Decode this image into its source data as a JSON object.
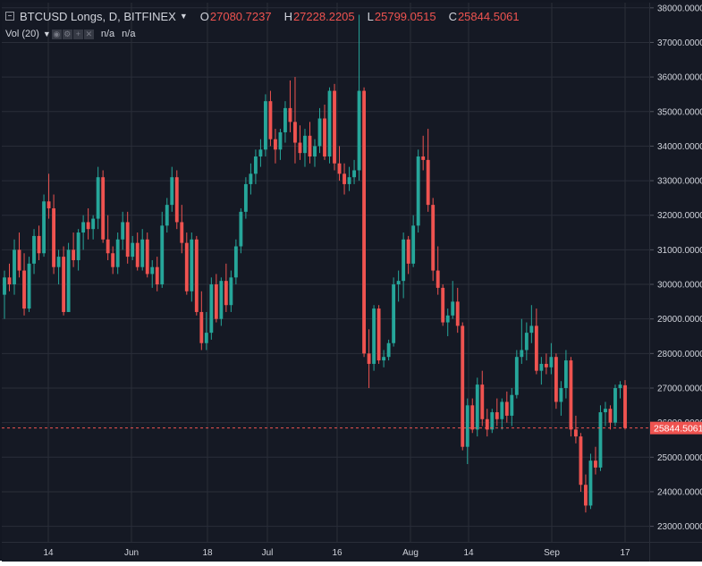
{
  "legend": {
    "title": "BTCUSD Longs, D, BITFINEX",
    "open_label": "O",
    "open": "27080.7237",
    "high_label": "H",
    "high": "27228.2205",
    "low_label": "L",
    "low": "25799.0515",
    "close_label": "C",
    "close": "25844.5061"
  },
  "volume": {
    "label": "Vol (20)",
    "value1": "n/a",
    "value2": "n/a"
  },
  "price_tag": "25844.5061",
  "colors": {
    "up": "#26a69a",
    "down": "#ef5350",
    "background": "#151924",
    "grid": "#2a2e39",
    "axis_text": "#d1d4dc",
    "price_line": "#ef5350"
  },
  "chart_data": {
    "type": "candlestick",
    "y_ticks": [
      "38000.0000",
      "37000.0000",
      "36000.0000",
      "35000.0000",
      "34000.0000",
      "33000.0000",
      "32000.0000",
      "31000.0000",
      "30000.0000",
      "29000.0000",
      "28000.0000",
      "27000.0000",
      "26000.0000",
      "25000.0000",
      "24000.0000",
      "23000.0000"
    ],
    "ylim": [
      22550,
      38150
    ],
    "x_ticks": [
      "14",
      "Jun",
      "18",
      "Jul",
      "16",
      "Aug",
      "14",
      "Sep",
      "17"
    ],
    "last_price": 25844.5061,
    "candles": [
      {
        "o": 29700,
        "h": 30400,
        "l": 29000,
        "c": 30200
      },
      {
        "o": 30200,
        "h": 30600,
        "l": 29800,
        "c": 30000
      },
      {
        "o": 30000,
        "h": 31300,
        "l": 29700,
        "c": 31000
      },
      {
        "o": 31000,
        "h": 31500,
        "l": 30200,
        "c": 30400
      },
      {
        "o": 30400,
        "h": 30900,
        "l": 29100,
        "c": 29300
      },
      {
        "o": 29300,
        "h": 30800,
        "l": 29200,
        "c": 30600
      },
      {
        "o": 30600,
        "h": 31600,
        "l": 30300,
        "c": 31400
      },
      {
        "o": 31400,
        "h": 31700,
        "l": 30700,
        "c": 30900
      },
      {
        "o": 30900,
        "h": 32600,
        "l": 30800,
        "c": 32400
      },
      {
        "o": 32400,
        "h": 33200,
        "l": 31900,
        "c": 32200
      },
      {
        "o": 32200,
        "h": 32600,
        "l": 30300,
        "c": 30500
      },
      {
        "o": 30500,
        "h": 31000,
        "l": 30000,
        "c": 30800
      },
      {
        "o": 30800,
        "h": 31100,
        "l": 29100,
        "c": 29200
      },
      {
        "o": 29200,
        "h": 31200,
        "l": 29200,
        "c": 31000
      },
      {
        "o": 31000,
        "h": 31500,
        "l": 30500,
        "c": 30700
      },
      {
        "o": 30700,
        "h": 31600,
        "l": 30400,
        "c": 31500
      },
      {
        "o": 31500,
        "h": 32000,
        "l": 31000,
        "c": 31800
      },
      {
        "o": 31800,
        "h": 32200,
        "l": 31300,
        "c": 31600
      },
      {
        "o": 31600,
        "h": 32000,
        "l": 31300,
        "c": 31900
      },
      {
        "o": 31900,
        "h": 33400,
        "l": 31600,
        "c": 33100
      },
      {
        "o": 33100,
        "h": 33300,
        "l": 31200,
        "c": 31300
      },
      {
        "o": 31300,
        "h": 32000,
        "l": 30700,
        "c": 30900
      },
      {
        "o": 30900,
        "h": 31100,
        "l": 30300,
        "c": 30500
      },
      {
        "o": 30500,
        "h": 31500,
        "l": 30300,
        "c": 31300
      },
      {
        "o": 31300,
        "h": 32100,
        "l": 31000,
        "c": 31800
      },
      {
        "o": 31800,
        "h": 32100,
        "l": 30600,
        "c": 30800
      },
      {
        "o": 30800,
        "h": 31400,
        "l": 30700,
        "c": 31200
      },
      {
        "o": 31200,
        "h": 31500,
        "l": 30400,
        "c": 30500
      },
      {
        "o": 30500,
        "h": 31600,
        "l": 30400,
        "c": 31300
      },
      {
        "o": 31300,
        "h": 31500,
        "l": 30200,
        "c": 30300
      },
      {
        "o": 30300,
        "h": 30700,
        "l": 29900,
        "c": 30500
      },
      {
        "o": 30500,
        "h": 30800,
        "l": 29800,
        "c": 30000
      },
      {
        "o": 30000,
        "h": 32100,
        "l": 29900,
        "c": 31700
      },
      {
        "o": 31700,
        "h": 32500,
        "l": 31500,
        "c": 32300
      },
      {
        "o": 32300,
        "h": 33400,
        "l": 32100,
        "c": 33100
      },
      {
        "o": 33100,
        "h": 33300,
        "l": 31600,
        "c": 31800
      },
      {
        "o": 31800,
        "h": 32300,
        "l": 30900,
        "c": 31200
      },
      {
        "o": 31200,
        "h": 31500,
        "l": 29700,
        "c": 29800
      },
      {
        "o": 29800,
        "h": 31500,
        "l": 29500,
        "c": 31300
      },
      {
        "o": 31300,
        "h": 31400,
        "l": 29100,
        "c": 29200
      },
      {
        "o": 29200,
        "h": 29800,
        "l": 28100,
        "c": 28300
      },
      {
        "o": 28300,
        "h": 29200,
        "l": 28100,
        "c": 28600
      },
      {
        "o": 28600,
        "h": 30200,
        "l": 28400,
        "c": 30000
      },
      {
        "o": 30000,
        "h": 30300,
        "l": 28900,
        "c": 29000
      },
      {
        "o": 29000,
        "h": 30200,
        "l": 28800,
        "c": 30100
      },
      {
        "o": 30100,
        "h": 30600,
        "l": 29200,
        "c": 29400
      },
      {
        "o": 29400,
        "h": 30400,
        "l": 29200,
        "c": 30200
      },
      {
        "o": 30200,
        "h": 31300,
        "l": 30000,
        "c": 31100
      },
      {
        "o": 31100,
        "h": 32200,
        "l": 30900,
        "c": 32100
      },
      {
        "o": 32100,
        "h": 33100,
        "l": 31900,
        "c": 32900
      },
      {
        "o": 32900,
        "h": 33500,
        "l": 32600,
        "c": 33200
      },
      {
        "o": 33200,
        "h": 33900,
        "l": 32900,
        "c": 33700
      },
      {
        "o": 33700,
        "h": 34200,
        "l": 33400,
        "c": 33900
      },
      {
        "o": 33900,
        "h": 35500,
        "l": 33700,
        "c": 35300
      },
      {
        "o": 35300,
        "h": 35600,
        "l": 34000,
        "c": 34200
      },
      {
        "o": 34200,
        "h": 34500,
        "l": 33500,
        "c": 33900
      },
      {
        "o": 33900,
        "h": 34500,
        "l": 33600,
        "c": 34400
      },
      {
        "o": 34400,
        "h": 35300,
        "l": 34100,
        "c": 35100
      },
      {
        "o": 35100,
        "h": 35900,
        "l": 34400,
        "c": 34700
      },
      {
        "o": 34700,
        "h": 36000,
        "l": 33500,
        "c": 34100
      },
      {
        "o": 34100,
        "h": 34600,
        "l": 33600,
        "c": 33800
      },
      {
        "o": 33800,
        "h": 34500,
        "l": 33400,
        "c": 34300
      },
      {
        "o": 34300,
        "h": 34700,
        "l": 33500,
        "c": 33700
      },
      {
        "o": 33700,
        "h": 34200,
        "l": 33400,
        "c": 34000
      },
      {
        "o": 34000,
        "h": 35100,
        "l": 33800,
        "c": 34800
      },
      {
        "o": 34800,
        "h": 35200,
        "l": 33600,
        "c": 33700
      },
      {
        "o": 33700,
        "h": 35700,
        "l": 33500,
        "c": 35600
      },
      {
        "o": 35600,
        "h": 35800,
        "l": 33300,
        "c": 33500
      },
      {
        "o": 33500,
        "h": 34000,
        "l": 33000,
        "c": 33200
      },
      {
        "o": 33200,
        "h": 33500,
        "l": 32600,
        "c": 32900
      },
      {
        "o": 32900,
        "h": 33400,
        "l": 32700,
        "c": 33100
      },
      {
        "o": 33100,
        "h": 33600,
        "l": 32900,
        "c": 33300
      },
      {
        "o": 33300,
        "h": 37800,
        "l": 33000,
        "c": 35600
      },
      {
        "o": 35600,
        "h": 35700,
        "l": 27900,
        "c": 28000
      },
      {
        "o": 28000,
        "h": 28700,
        "l": 27000,
        "c": 27700
      },
      {
        "o": 27700,
        "h": 29400,
        "l": 27500,
        "c": 29300
      },
      {
        "o": 29300,
        "h": 29400,
        "l": 27700,
        "c": 27800
      },
      {
        "o": 27800,
        "h": 28100,
        "l": 27600,
        "c": 27900
      },
      {
        "o": 27900,
        "h": 28400,
        "l": 27800,
        "c": 28300
      },
      {
        "o": 28300,
        "h": 30200,
        "l": 28200,
        "c": 30000
      },
      {
        "o": 30000,
        "h": 30400,
        "l": 29500,
        "c": 30100
      },
      {
        "o": 30100,
        "h": 31500,
        "l": 29600,
        "c": 31300
      },
      {
        "o": 31300,
        "h": 31400,
        "l": 30300,
        "c": 30600
      },
      {
        "o": 30600,
        "h": 32000,
        "l": 30500,
        "c": 31700
      },
      {
        "o": 31700,
        "h": 33900,
        "l": 31500,
        "c": 33700
      },
      {
        "o": 33700,
        "h": 34300,
        "l": 33300,
        "c": 33600
      },
      {
        "o": 33600,
        "h": 34500,
        "l": 32100,
        "c": 32300
      },
      {
        "o": 32300,
        "h": 32500,
        "l": 30100,
        "c": 30400
      },
      {
        "o": 30400,
        "h": 31100,
        "l": 29700,
        "c": 29900
      },
      {
        "o": 29900,
        "h": 30000,
        "l": 28800,
        "c": 28900
      },
      {
        "o": 28900,
        "h": 29300,
        "l": 28500,
        "c": 29100
      },
      {
        "o": 29100,
        "h": 30100,
        "l": 29000,
        "c": 29500
      },
      {
        "o": 29500,
        "h": 29900,
        "l": 28600,
        "c": 28800
      },
      {
        "o": 28800,
        "h": 28900,
        "l": 25200,
        "c": 25300
      },
      {
        "o": 25300,
        "h": 26700,
        "l": 24800,
        "c": 26500
      },
      {
        "o": 26500,
        "h": 26700,
        "l": 25700,
        "c": 25800
      },
      {
        "o": 25800,
        "h": 27300,
        "l": 25600,
        "c": 27100
      },
      {
        "o": 27100,
        "h": 27500,
        "l": 25900,
        "c": 26100
      },
      {
        "o": 26100,
        "h": 26400,
        "l": 25600,
        "c": 25800
      },
      {
        "o": 25800,
        "h": 26400,
        "l": 25700,
        "c": 26300
      },
      {
        "o": 26300,
        "h": 26700,
        "l": 25900,
        "c": 26100
      },
      {
        "o": 26100,
        "h": 26700,
        "l": 25800,
        "c": 26600
      },
      {
        "o": 26600,
        "h": 26900,
        "l": 26000,
        "c": 26200
      },
      {
        "o": 26200,
        "h": 27000,
        "l": 25900,
        "c": 26800
      },
      {
        "o": 26800,
        "h": 28100,
        "l": 26700,
        "c": 27900
      },
      {
        "o": 27900,
        "h": 29000,
        "l": 27700,
        "c": 28100
      },
      {
        "o": 28100,
        "h": 28900,
        "l": 27800,
        "c": 28600
      },
      {
        "o": 28600,
        "h": 29400,
        "l": 28300,
        "c": 28800
      },
      {
        "o": 28800,
        "h": 29300,
        "l": 27400,
        "c": 27500
      },
      {
        "o": 27500,
        "h": 27900,
        "l": 27100,
        "c": 27700
      },
      {
        "o": 27700,
        "h": 28000,
        "l": 27400,
        "c": 27600
      },
      {
        "o": 27600,
        "h": 28300,
        "l": 27400,
        "c": 27900
      },
      {
        "o": 27900,
        "h": 28000,
        "l": 26400,
        "c": 26600
      },
      {
        "o": 26600,
        "h": 27200,
        "l": 26200,
        "c": 27000
      },
      {
        "o": 27000,
        "h": 28100,
        "l": 26700,
        "c": 27800
      },
      {
        "o": 27800,
        "h": 27900,
        "l": 25600,
        "c": 25800
      },
      {
        "o": 25800,
        "h": 26200,
        "l": 25400,
        "c": 25600
      },
      {
        "o": 25600,
        "h": 25700,
        "l": 24000,
        "c": 24200
      },
      {
        "o": 24200,
        "h": 24500,
        "l": 23400,
        "c": 23600
      },
      {
        "o": 23600,
        "h": 25100,
        "l": 23500,
        "c": 24900
      },
      {
        "o": 24900,
        "h": 25300,
        "l": 24500,
        "c": 24700
      },
      {
        "o": 24700,
        "h": 26500,
        "l": 24600,
        "c": 26300
      },
      {
        "o": 26300,
        "h": 26600,
        "l": 25900,
        "c": 26400
      },
      {
        "o": 26400,
        "h": 26500,
        "l": 25800,
        "c": 26000
      },
      {
        "o": 26000,
        "h": 27100,
        "l": 25900,
        "c": 27000
      },
      {
        "o": 27000,
        "h": 27200,
        "l": 26700,
        "c": 27100
      },
      {
        "o": 27081,
        "h": 27228,
        "l": 25799,
        "c": 25845
      }
    ]
  }
}
